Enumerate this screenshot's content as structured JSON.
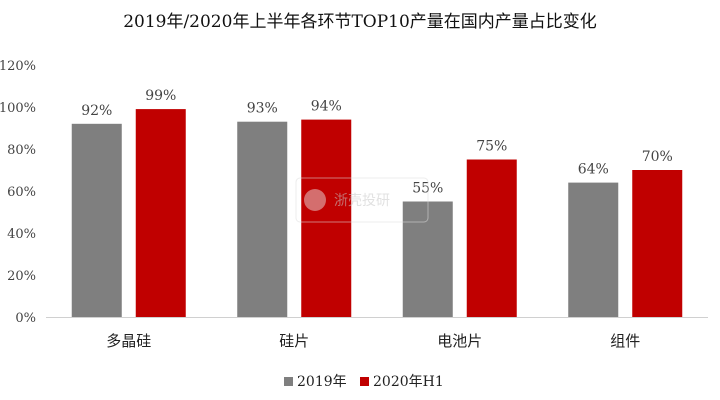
{
  "chart_data": {
    "type": "bar",
    "title": "2019年/2020年上半年各环节TOP10产量在国内产量占比变化",
    "categories": [
      "多晶硅",
      "硅片",
      "电池片",
      "组件"
    ],
    "series": [
      {
        "name": "2019年",
        "values": [
          92,
          93,
          55,
          64
        ],
        "labels": [
          "92%",
          "93%",
          "55%",
          "64%"
        ],
        "color": "#7f7f7f"
      },
      {
        "name": "2020年H1",
        "values": [
          99,
          94,
          75,
          70
        ],
        "labels": [
          "99%",
          "94%",
          "75%",
          "70%"
        ],
        "color": "#c00000"
      }
    ],
    "ylim": [
      0,
      120
    ],
    "yticks": [
      "0%",
      "20%",
      "40%",
      "60%",
      "80%",
      "100%",
      "120%"
    ],
    "ytick_values": [
      0,
      20,
      40,
      60,
      80,
      100,
      120
    ],
    "grid": false,
    "legend": "bottom-center",
    "xlabel": "",
    "ylabel": ""
  },
  "watermark": {
    "text": "浙壳投研"
  }
}
